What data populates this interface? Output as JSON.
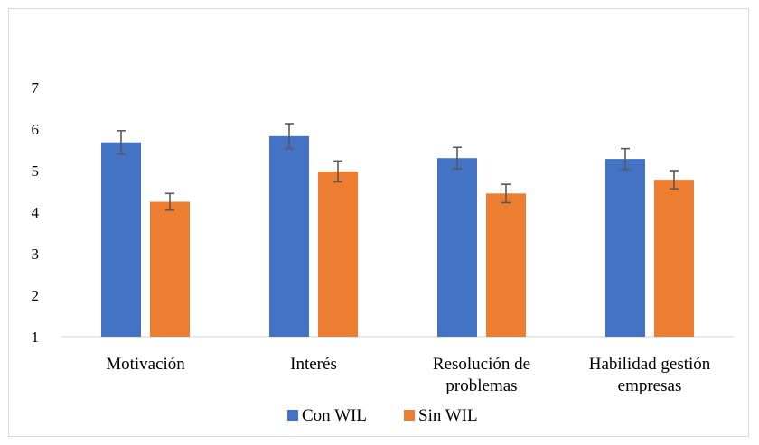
{
  "chart_data": {
    "type": "bar",
    "categories": [
      [
        "Motivación"
      ],
      [
        "Interés"
      ],
      [
        "Resolución de",
        "problemas"
      ],
      [
        "Habilidad gestión",
        "empresas"
      ]
    ],
    "series": [
      {
        "name": "Con WIL",
        "color": "#4472c4",
        "values": [
          5.68,
          5.83,
          5.3,
          5.28
        ],
        "errors": [
          0.28,
          0.3,
          0.26,
          0.25
        ]
      },
      {
        "name": "Sin WIL",
        "color": "#ed7d31",
        "values": [
          4.25,
          4.98,
          4.45,
          4.78
        ],
        "errors": [
          0.2,
          0.25,
          0.22,
          0.22
        ]
      }
    ],
    "yticks": [
      "1",
      "2",
      "3",
      "4",
      "5",
      "6",
      "7"
    ],
    "ylim": [
      1,
      7
    ],
    "grid": false,
    "error_bar_color": "#595959",
    "legend_position": "bottom"
  }
}
